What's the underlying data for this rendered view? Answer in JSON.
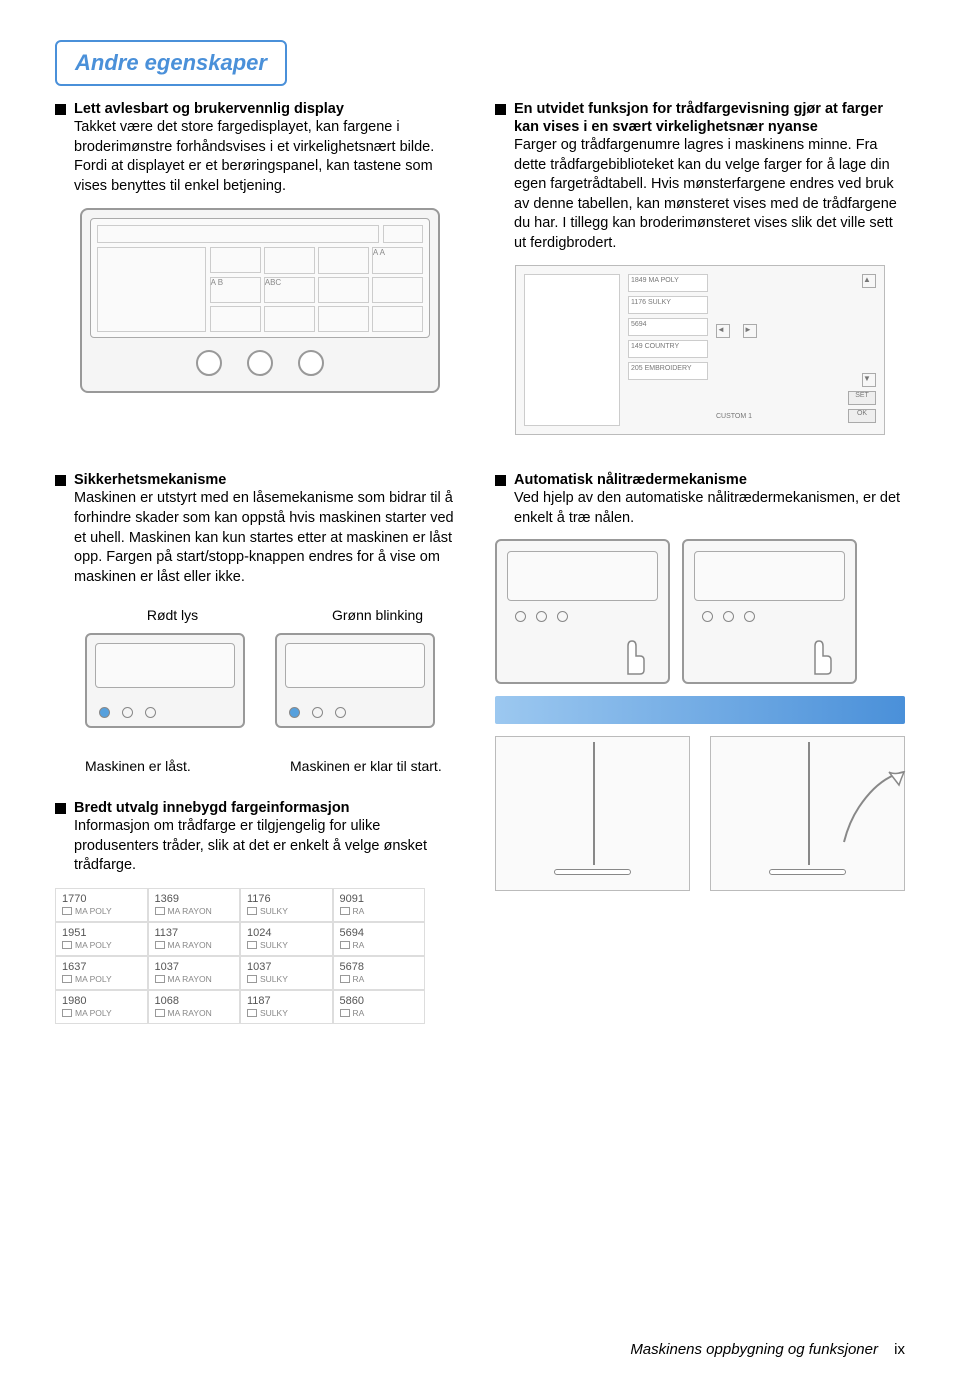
{
  "title": "Andre egenskaper",
  "row1": {
    "left": {
      "title": "Lett avlesbart og brukervennlig display",
      "body": "Takket være det store fargedisplayet, kan fargene i broderimønstre forhåndsvises i et virkelighetsnært bilde. Fordi at displayet er et berøringspanel, kan tastene som vises benyttes til enkel betjening."
    },
    "right": {
      "title": "En utvidet funksjon for trådfargevisning gjør at farger kan vises i en svært virkelighetsnær nyanse",
      "body": "Farger og trådfargenumre lagres i maskinens minne. Fra dette trådfargebiblioteket kan du velge farger for å lage din egen fargetrådtabell. Hvis mønsterfargene endres ved bruk av denne tabellen, kan mønsteret vises med de trådfargene du har. I tillegg kan broderimønsteret vises slik det ville sett ut ferdigbrodert."
    }
  },
  "row2": {
    "left": {
      "title": "Sikkerhetsmekanisme",
      "body": "Maskinen er utstyrt med en låsemekanisme som bidrar til å forhindre skader som kan oppstå hvis maskinen starter ved et uhell. Maskinen kan kun startes etter at maskinen er låst opp. Fargen på start/stopp-knappen endres for å vise om maskinen er låst eller ikke.",
      "label_red": "Rødt lys",
      "label_green": "Grønn blinking",
      "state_locked": "Maskinen er låst.",
      "state_ready": "Maskinen er klar til start."
    },
    "right": {
      "title": "Automatisk nålitrædermekanisme",
      "body": "Ved hjelp av den automatiske nålitrædermekanismen, er det enkelt å træ nålen."
    }
  },
  "row3": {
    "title": "Bredt utvalg innebygd fargeinformasjon",
    "body": "Informasjon om trådfarge er tilgjengelig for ulike produsenters tråder, slik at det er enkelt å velge ønsket trådfarge."
  },
  "thread_table": [
    {
      "num": "1770",
      "brand": "MA POLY"
    },
    {
      "num": "1369",
      "brand": "MA RAYON"
    },
    {
      "num": "1176",
      "brand": "SULKY"
    },
    {
      "num": "9091",
      "brand": "RA"
    },
    {
      "num": "1951",
      "brand": "MA POLY"
    },
    {
      "num": "1137",
      "brand": "MA RAYON"
    },
    {
      "num": "1024",
      "brand": "SULKY"
    },
    {
      "num": "5694",
      "brand": "RA"
    },
    {
      "num": "1637",
      "brand": "MA POLY"
    },
    {
      "num": "1037",
      "brand": "MA RAYON"
    },
    {
      "num": "1037",
      "brand": "SULKY"
    },
    {
      "num": "5678",
      "brand": "RA"
    },
    {
      "num": "1980",
      "brand": "MA POLY"
    },
    {
      "num": "1068",
      "brand": "MA RAYON"
    },
    {
      "num": "1187",
      "brand": "SULKY"
    },
    {
      "num": "5860",
      "brand": "RA"
    }
  ],
  "palette_colors": [
    "#8b5a3c",
    "#a67c52",
    "#c9a66b",
    "#d4c087",
    "#5b8a3a",
    "#7fa657",
    "#4a6e8f",
    "#6b8fb5",
    "#8b6fb5",
    "#b57fb5",
    "#6b4a3c",
    "#8b6a52",
    "#a9866b",
    "#b4a077",
    "#4b7a2a",
    "#6f9647",
    "#3a5e7f",
    "#5b7fa5",
    "#7b5fa5",
    "#a56fa5",
    "#4b3a2c",
    "#6b5a42",
    "#89665b",
    "#948067",
    "#3b6a1a",
    "#5f8637",
    "#2a4e6f",
    "#4b6f95",
    "#6b4f95",
    "#955f95",
    "#3b2a1c",
    "#5b4a32",
    "#69564b",
    "#746057",
    "#2b5a0a",
    "#4f7627",
    "#1a3e5f",
    "#3b5f85",
    "#5b3f85",
    "#854f85",
    "#666",
    "#888",
    "#aaa",
    "#ccc",
    "#444",
    "#222",
    "#999",
    "#bbb",
    "#ddd",
    "#555",
    "#333",
    "#555",
    "#777",
    "#999",
    "#111",
    "#000",
    "#666",
    "#888",
    "#aaa",
    "#222"
  ],
  "color_picker_labels": {
    "set": "SET",
    "ok": "OK",
    "custom": "CUSTOM 1",
    "items": [
      "1849 MA POLY",
      "1176 SULKY",
      "5694",
      "149 COUNTRY",
      "205 EMBROIDERY"
    ]
  },
  "footer": {
    "label": "Maskinens oppbygning og funksjoner",
    "page": "ix"
  }
}
